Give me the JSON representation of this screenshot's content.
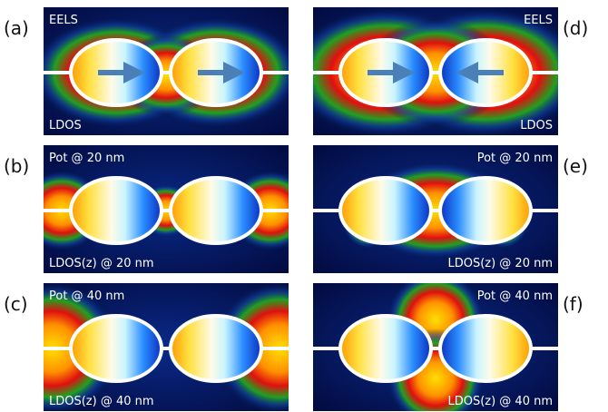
{
  "panels": [
    {
      "letter": "(a)",
      "top": "EELS",
      "bottom": "LDOS"
    },
    {
      "letter": "(b)",
      "top": "Pot @ 20 nm",
      "bottom": "LDOS(z) @ 20 nm"
    },
    {
      "letter": "(c)",
      "top": "Pot @ 40 nm",
      "bottom": "LDOS(z) @ 40 nm"
    },
    {
      "letter": "(d)",
      "top": "EELS",
      "bottom": "LDOS"
    },
    {
      "letter": "(e)",
      "top": "Pot @ 20 nm",
      "bottom": "LDOS(z) @ 20 nm"
    },
    {
      "letter": "(f)",
      "top": "Pot @ 40 nm",
      "bottom": "LDOS(z) @ 40 nm"
    }
  ]
}
